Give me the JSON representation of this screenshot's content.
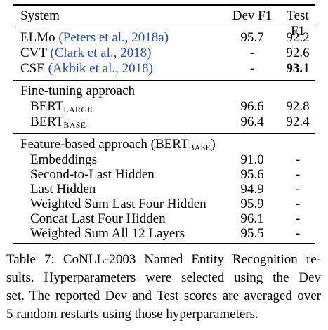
{
  "table": {
    "header": {
      "system": "System",
      "dev": "Dev F1",
      "test": "Test F1"
    },
    "group1": [
      {
        "name": "ELMo",
        "cite": "(Peters et al., 2018a)",
        "dev": "95.7",
        "test": "92.2",
        "test_bold": false
      },
      {
        "name": "CVT",
        "cite": "(Clark et al., 2018)",
        "dev": "-",
        "test": "92.6",
        "test_bold": false
      },
      {
        "name": "CSE",
        "cite": "(Akbik et al., 2018)",
        "dev": "-",
        "test": "93.1",
        "test_bold": true
      }
    ],
    "finetune": {
      "title": "Fine-tuning approach",
      "rows": [
        {
          "base": "BERT",
          "sub": "LARGE",
          "dev": "96.6",
          "test": "92.8"
        },
        {
          "base": "BERT",
          "sub": "BASE",
          "dev": "96.4",
          "test": "92.4"
        }
      ]
    },
    "feature": {
      "title_prefix": "Feature-based approach (BERT",
      "title_sub": "BASE",
      "title_suffix": ")",
      "rows": [
        {
          "name": "Embeddings",
          "dev": "91.0",
          "test": "-"
        },
        {
          "name": "Second-to-Last Hidden",
          "dev": "95.6",
          "test": "-"
        },
        {
          "name": "Last Hidden",
          "dev": "94.9",
          "test": "-"
        },
        {
          "name": "Weighted Sum Last Four Hidden",
          "dev": "95.9",
          "test": "-"
        },
        {
          "name": "Concat Last Four Hidden",
          "dev": "96.1",
          "test": "-"
        },
        {
          "name": "Weighted Sum All 12 Layers",
          "dev": "95.5",
          "test": "-"
        }
      ]
    }
  },
  "caption": {
    "lines": [
      "Table 7: CoNLL-2003 Named Entity Recognition re-",
      "sults. Hyperparameters were selected using the Dev",
      "set. The reported Dev and Test scores are averaged over",
      "5 random restarts using those hyperparameters."
    ]
  }
}
